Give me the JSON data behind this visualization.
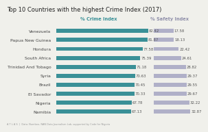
{
  "title": "Top 10 Countries with the highest Crime Index (2017)",
  "countries": [
    "Venezuela",
    "Papua New Guinea",
    "Hondura",
    "South Africa",
    "Trinidad And Tobago",
    "Syria",
    "Brazil",
    "El Savador",
    "Nigeria",
    "Namibia"
  ],
  "crime_index": [
    82.42,
    81.87,
    77.58,
    75.39,
    71.18,
    70.63,
    70.45,
    70.33,
    67.78,
    67.13
  ],
  "safety_index": [
    17.58,
    18.13,
    22.42,
    24.61,
    28.82,
    29.37,
    29.55,
    29.67,
    32.22,
    32.87
  ],
  "crime_color": "#3a9097",
  "safety_color": "#b0b0c8",
  "bg_color": "#f0f0eb",
  "title_fontsize": 6.0,
  "label_fontsize": 4.5,
  "bar_label_fontsize": 3.9,
  "legend_fontsize": 4.8,
  "footer_text": "A T L A S  |  Data: Numbeo, NAN Data Journalism Lab, supported by Code for Nigeria",
  "crime_label": "% Crime Index",
  "safety_label": "% Safety Index",
  "crime_label_color": "#3a9097",
  "safety_label_color": "#9090aa"
}
